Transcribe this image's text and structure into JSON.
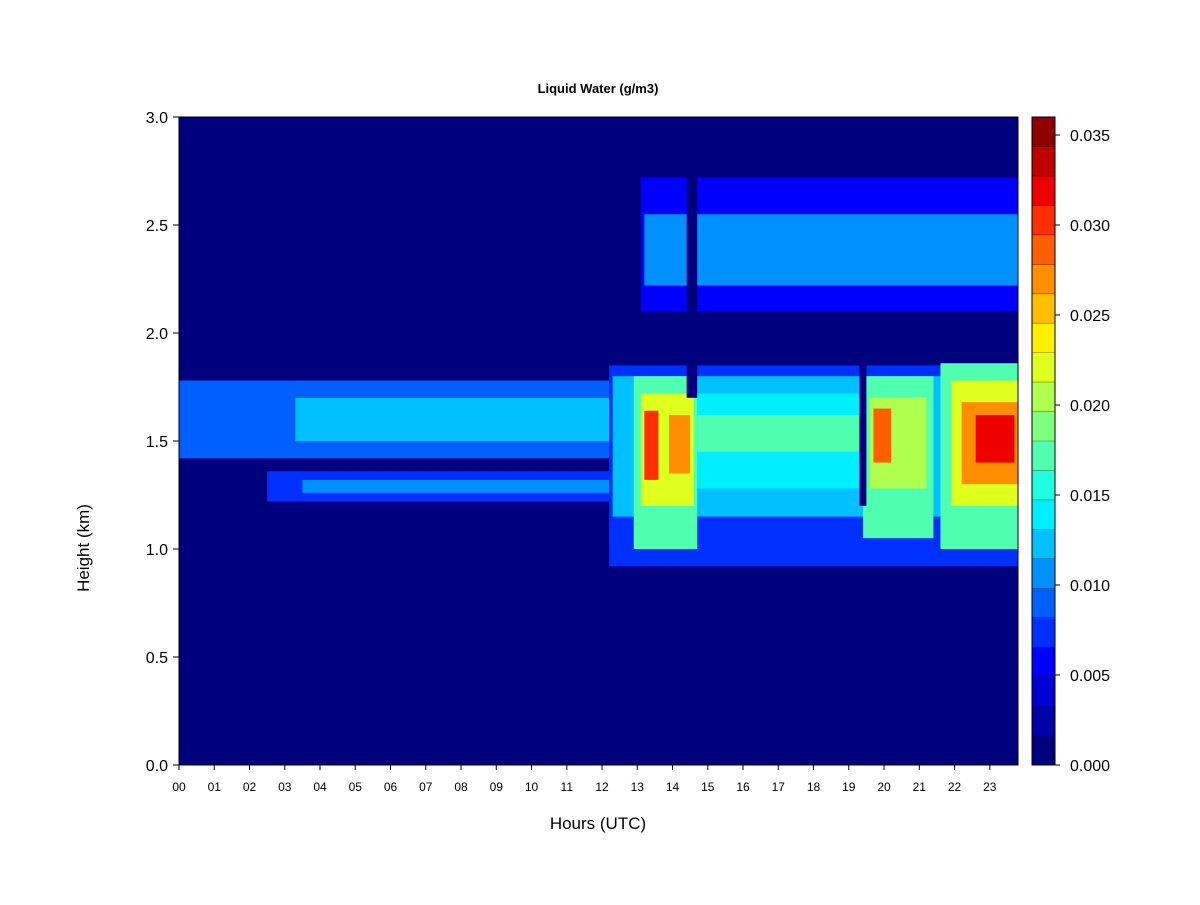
{
  "chart_data": {
    "type": "heatmap",
    "title": "Liquid Water (g/m3)",
    "xlabel": "Hours (UTC)",
    "ylabel": "Height (km)",
    "x_ticks": [
      "00",
      "01",
      "02",
      "03",
      "04",
      "05",
      "06",
      "07",
      "08",
      "09",
      "10",
      "11",
      "12",
      "13",
      "14",
      "15",
      "16",
      "17",
      "18",
      "19",
      "20",
      "21",
      "22",
      "23"
    ],
    "y_ticks": [
      "0.0",
      "0.5",
      "1.0",
      "1.5",
      "2.0",
      "2.5",
      "3.0"
    ],
    "y_tick_values": [
      0.0,
      0.5,
      1.0,
      1.5,
      2.0,
      2.5,
      3.0
    ],
    "xlim": [
      0,
      23.8
    ],
    "ylim": [
      0,
      3.0
    ],
    "colorbar": {
      "ticks": [
        "0.000",
        "0.005",
        "0.010",
        "0.015",
        "0.020",
        "0.025",
        "0.030",
        "0.035"
      ],
      "tick_values": [
        0.0,
        0.005,
        0.01,
        0.015,
        0.02,
        0.025,
        0.03,
        0.035
      ],
      "range": [
        0.0,
        0.036
      ],
      "colors": [
        "#00007F",
        "#0000AA",
        "#0000D5",
        "#0000FF",
        "#0030FF",
        "#0060FF",
        "#0090FF",
        "#00C0FF",
        "#00EFFF",
        "#1FFFDF",
        "#4FFFAF",
        "#7FFF7F",
        "#AFFF4F",
        "#DFFF1F",
        "#FFEF00",
        "#FFBF00",
        "#FF8F00",
        "#FF5F00",
        "#FF2F00",
        "#EF0000",
        "#BF0000",
        "#8F0000"
      ]
    },
    "regions": [
      {
        "x0": 0.0,
        "x1": 12.2,
        "y0": 1.42,
        "y1": 1.78,
        "value": 0.0095
      },
      {
        "x0": 3.3,
        "x1": 12.2,
        "y0": 1.5,
        "y1": 1.7,
        "value": 0.0115
      },
      {
        "x0": 2.5,
        "x1": 12.2,
        "y0": 1.22,
        "y1": 1.36,
        "value": 0.008
      },
      {
        "x0": 3.5,
        "x1": 12.2,
        "y0": 1.26,
        "y1": 1.32,
        "value": 0.011
      },
      {
        "x0": 13.1,
        "x1": 23.8,
        "y0": 2.1,
        "y1": 2.72,
        "value": 0.006
      },
      {
        "x0": 13.2,
        "x1": 23.8,
        "y0": 2.22,
        "y1": 2.55,
        "value": 0.0105
      },
      {
        "x0": 12.2,
        "x1": 23.8,
        "y0": 0.92,
        "y1": 1.85,
        "value": 0.007
      },
      {
        "x0": 12.3,
        "x1": 23.8,
        "y0": 1.15,
        "y1": 1.8,
        "value": 0.0125
      },
      {
        "x0": 14.7,
        "x1": 19.4,
        "y0": 1.28,
        "y1": 1.72,
        "value": 0.0145
      },
      {
        "x0": 14.7,
        "x1": 19.4,
        "y0": 1.45,
        "y1": 1.62,
        "value": 0.0175
      },
      {
        "x0": 12.9,
        "x1": 14.7,
        "y0": 1.0,
        "y1": 1.8,
        "value": 0.0165
      },
      {
        "x0": 13.1,
        "x1": 14.6,
        "y0": 1.2,
        "y1": 1.72,
        "value": 0.0215
      },
      {
        "x0": 13.2,
        "x1": 13.6,
        "y0": 1.32,
        "y1": 1.64,
        "value": 0.0295
      },
      {
        "x0": 13.9,
        "x1": 14.5,
        "y0": 1.35,
        "y1": 1.62,
        "value": 0.0275
      },
      {
        "x0": 19.4,
        "x1": 21.4,
        "y0": 1.05,
        "y1": 1.8,
        "value": 0.0165
      },
      {
        "x0": 19.6,
        "x1": 21.2,
        "y0": 1.28,
        "y1": 1.7,
        "value": 0.0205
      },
      {
        "x0": 19.7,
        "x1": 20.2,
        "y0": 1.4,
        "y1": 1.65,
        "value": 0.028
      },
      {
        "x0": 21.6,
        "x1": 23.8,
        "y0": 1.0,
        "y1": 1.86,
        "value": 0.017
      },
      {
        "x0": 21.9,
        "x1": 23.8,
        "y0": 1.2,
        "y1": 1.78,
        "value": 0.022
      },
      {
        "x0": 22.2,
        "x1": 23.8,
        "y0": 1.3,
        "y1": 1.68,
        "value": 0.0275
      },
      {
        "x0": 22.6,
        "x1": 23.7,
        "y0": 1.4,
        "y1": 1.62,
        "value": 0.0315
      }
    ],
    "gaps": [
      {
        "x0": 14.4,
        "x1": 14.7,
        "y0": 1.7,
        "y1": 2.72
      },
      {
        "x0": 19.3,
        "x1": 19.5,
        "y0": 1.2,
        "y1": 2.0
      }
    ]
  }
}
